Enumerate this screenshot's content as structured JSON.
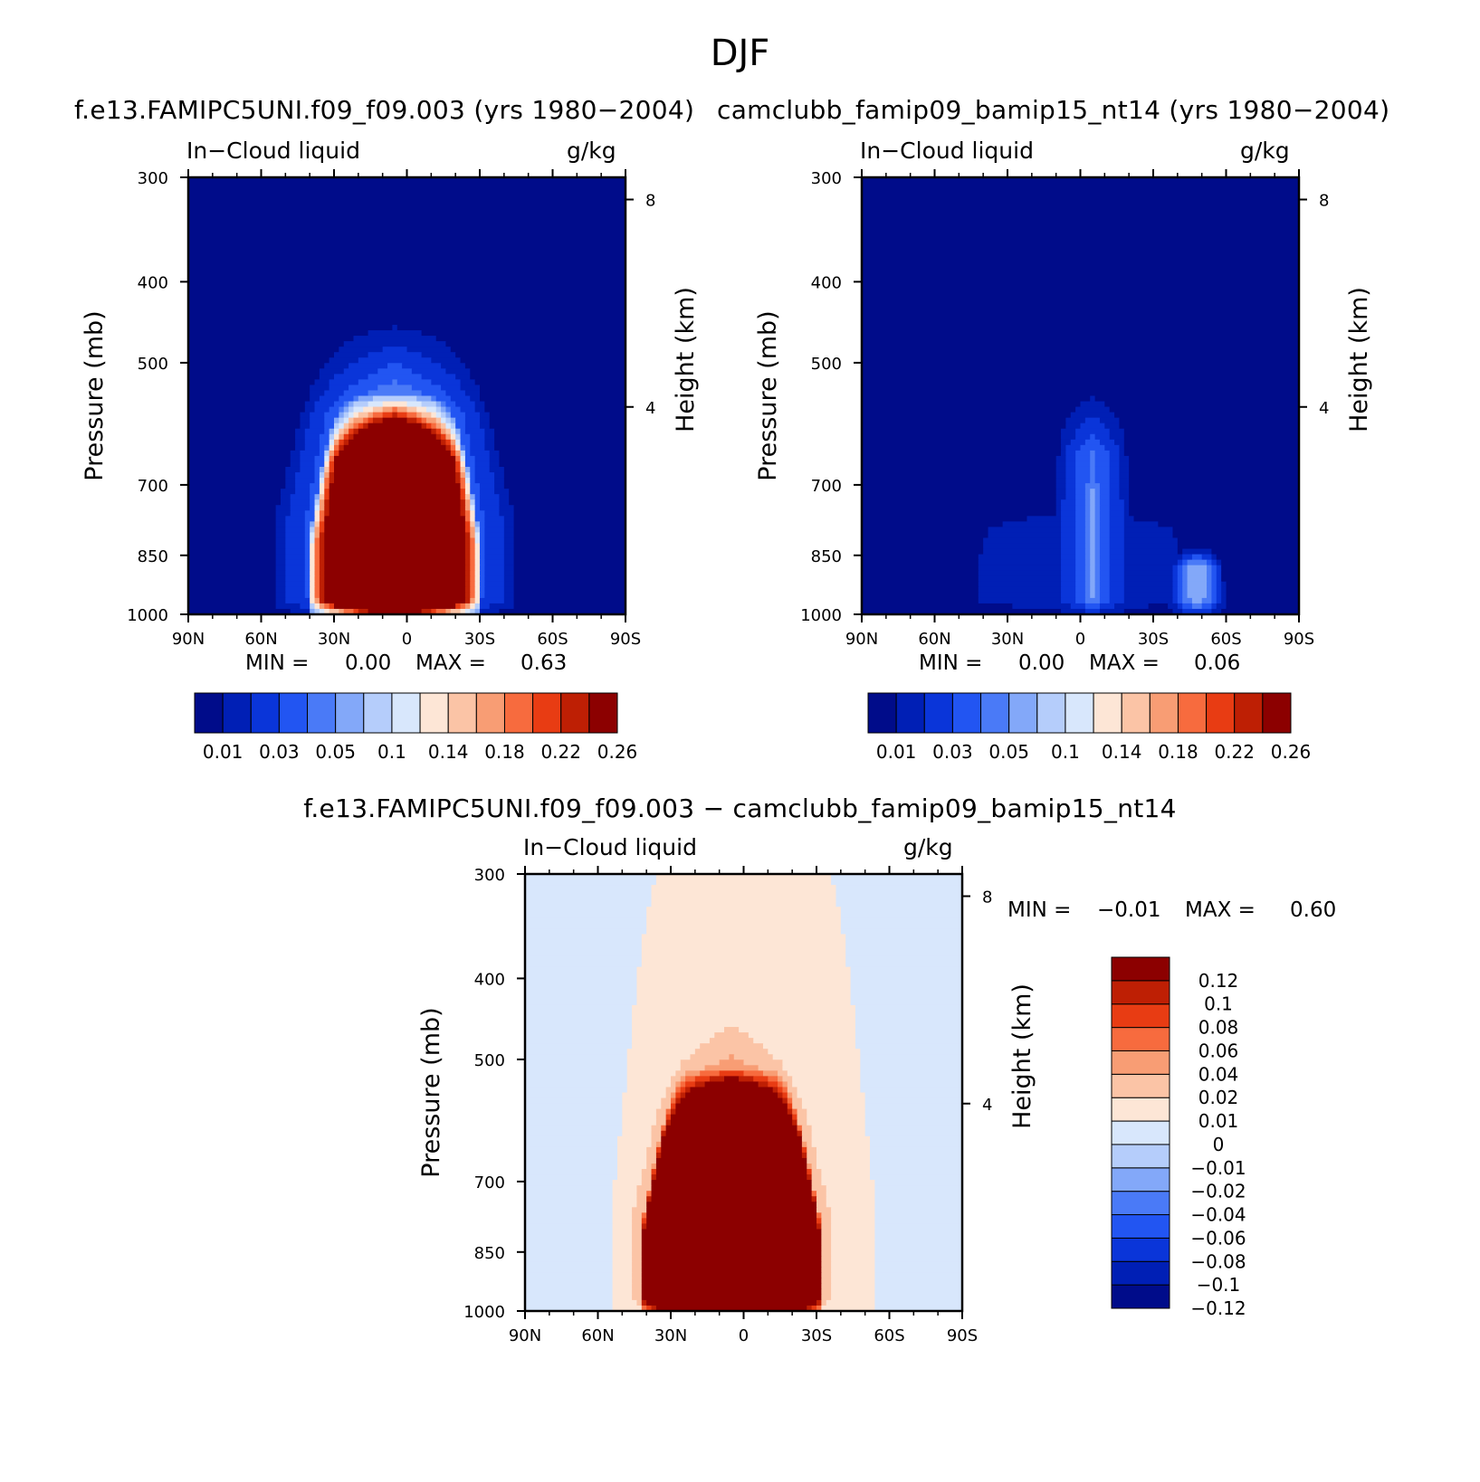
{
  "main_title": "DJF",
  "panels": [
    {
      "title": "f.e13.FAMIPC5UNI.f09_f09.003 (yrs 1980−2004)",
      "variable": "In−Cloud liquid",
      "units": "g/kg",
      "min_label": "MIN =",
      "min_value": "0.00",
      "max_label": "MAX =",
      "max_value": "0.63"
    },
    {
      "title": "camclubb_famip09_bamip15_nt14 (yrs 1980−2004)",
      "variable": "In−Cloud liquid",
      "units": "g/kg",
      "min_label": "MIN =",
      "min_value": "0.00",
      "max_label": "MAX =",
      "max_value": "0.06"
    },
    {
      "title": "f.e13.FAMIPC5UNI.f09_f09.003 − camclubb_famip09_bamip15_nt14",
      "variable": "In−Cloud liquid",
      "units": "g/kg",
      "min_label": "MIN =",
      "min_value": "−0.01",
      "max_label": "MAX =",
      "max_value": "0.60"
    }
  ],
  "chart_data": [
    {
      "type": "heatmap",
      "title": "f.e13.FAMIPC5UNI.f09_f09.003 (yrs 1980−2004)",
      "xlabel": "",
      "ylabel": "Pressure (mb)",
      "y2label": "Height (km)",
      "x_ticks": [
        "90N",
        "60N",
        "30N",
        "0",
        "30S",
        "60S",
        "90S"
      ],
      "x_range": [
        90,
        -90
      ],
      "y_ticks": [
        300,
        400,
        500,
        700,
        850,
        1000
      ],
      "y_range": [
        1000,
        300
      ],
      "y2_ticks": [
        8,
        4
      ],
      "colorbar_labels": [
        "0.01",
        "0.03",
        "0.05",
        "0.1",
        "0.14",
        "0.18",
        "0.22",
        "0.26"
      ],
      "levels": [
        0.01,
        0.02,
        0.03,
        0.04,
        0.05,
        0.07,
        0.1,
        0.12,
        0.14,
        0.16,
        0.18,
        0.2,
        0.22,
        0.24,
        0.26
      ],
      "colors": [
        "#000c8a",
        "#001fb5",
        "#0a35d9",
        "#2255f2",
        "#4a7af7",
        "#83a8f9",
        "#b5cdfb",
        "#d8e7fc",
        "#fde6d6",
        "#fbc4a6",
        "#f89d74",
        "#f76b3e",
        "#e83c13",
        "#be1f04",
        "#8c0000"
      ],
      "fields": [
        {
          "lat_center": 5,
          "p_top": 365,
          "peak": 0.012,
          "width_lat": 62,
          "width_top_lat": 22
        },
        {
          "lat_center": 5,
          "p_top": 430,
          "peak": 0.06,
          "width_lat": 52,
          "width_top_lat": 18
        },
        {
          "lat_center": 5,
          "p_top": 535,
          "peak": 0.63,
          "width_lat": 36,
          "width_top_lat": 18
        }
      ]
    },
    {
      "type": "heatmap",
      "title": "camclubb_famip09_bamip15_nt14 (yrs 1980−2004)",
      "xlabel": "",
      "ylabel": "Pressure (mb)",
      "y2label": "Height (km)",
      "x_ticks": [
        "90N",
        "60N",
        "30N",
        "0",
        "30S",
        "60S",
        "90S"
      ],
      "x_range": [
        90,
        -90
      ],
      "y_ticks": [
        300,
        400,
        500,
        700,
        850,
        1000
      ],
      "y_range": [
        1000,
        300
      ],
      "y2_ticks": [
        8,
        4
      ],
      "colorbar_labels": [
        "0.01",
        "0.03",
        "0.05",
        "0.1",
        "0.14",
        "0.18",
        "0.22",
        "0.26"
      ],
      "levels": [
        0.01,
        0.02,
        0.03,
        0.04,
        0.05,
        0.07,
        0.1,
        0.12,
        0.14,
        0.16,
        0.18,
        0.2,
        0.22,
        0.24,
        0.26
      ],
      "colors": [
        "#000c8a",
        "#001fb5",
        "#0a35d9",
        "#2255f2",
        "#4a7af7",
        "#83a8f9",
        "#b5cdfb",
        "#d8e7fc",
        "#fde6d6",
        "#fbc4a6",
        "#f89d74",
        "#f76b3e",
        "#e83c13",
        "#be1f04",
        "#8c0000"
      ],
      "fields": [
        {
          "lat_center": 0,
          "p_top": 720,
          "peak": 0.02,
          "width_lat": 60,
          "width_top_lat": 40
        },
        {
          "lat_center": -5,
          "p_top": 520,
          "peak": 0.04,
          "width_lat": 18,
          "width_top_lat": 10
        },
        {
          "lat_center": -5,
          "p_top": 610,
          "peak": 0.05,
          "width_lat": 10,
          "width_top_lat": 6
        },
        {
          "lat_center": -48,
          "p_top": 830,
          "peak": 0.06,
          "width_lat": 12,
          "width_top_lat": 8
        }
      ]
    },
    {
      "type": "heatmap",
      "title": "f.e13.FAMIPC5UNI.f09_f09.003 − camclubb_famip09_bamip15_nt14",
      "xlabel": "",
      "ylabel": "Pressure (mb)",
      "y2label": "Height (km)",
      "x_ticks": [
        "90N",
        "60N",
        "30N",
        "0",
        "30S",
        "60S",
        "90S"
      ],
      "x_range": [
        90,
        -90
      ],
      "y_ticks": [
        300,
        400,
        500,
        700,
        850,
        1000
      ],
      "y_range": [
        1000,
        300
      ],
      "y2_ticks": [
        8,
        4
      ],
      "colorbar_labels": [
        "0.12",
        "0.1",
        "0.08",
        "0.06",
        "0.04",
        "0.02",
        "0.01",
        "0",
        "−0.01",
        "−0.02",
        "−0.04",
        "−0.06",
        "−0.08",
        "−0.1",
        "−0.12"
      ],
      "levels": [
        -0.12,
        -0.1,
        -0.08,
        -0.06,
        -0.04,
        -0.02,
        -0.01,
        0,
        0.01,
        0.02,
        0.04,
        0.06,
        0.08,
        0.1,
        0.12
      ],
      "colors": [
        "#000c8a",
        "#001fb5",
        "#0a35d9",
        "#2255f2",
        "#4a7af7",
        "#83a8f9",
        "#b5cdfb",
        "#d8e7fc",
        "#fde6d6",
        "#fbc4a6",
        "#f89d74",
        "#f76b3e",
        "#e83c13",
        "#be1f04",
        "#8c0000"
      ],
      "background_value": -0.005,
      "fields": [
        {
          "lat_center": 0,
          "p_top": 300,
          "peak": 0.005,
          "width_lat": 54,
          "width_top_lat": 34
        },
        {
          "lat_center": 5,
          "p_top": 380,
          "peak": 0.02,
          "width_lat": 48,
          "width_top_lat": 14
        },
        {
          "lat_center": 5,
          "p_top": 440,
          "peak": 0.05,
          "width_lat": 44,
          "width_top_lat": 12
        },
        {
          "lat_center": 5,
          "p_top": 505,
          "peak": 0.6,
          "width_lat": 38,
          "width_top_lat": 16
        }
      ]
    }
  ]
}
